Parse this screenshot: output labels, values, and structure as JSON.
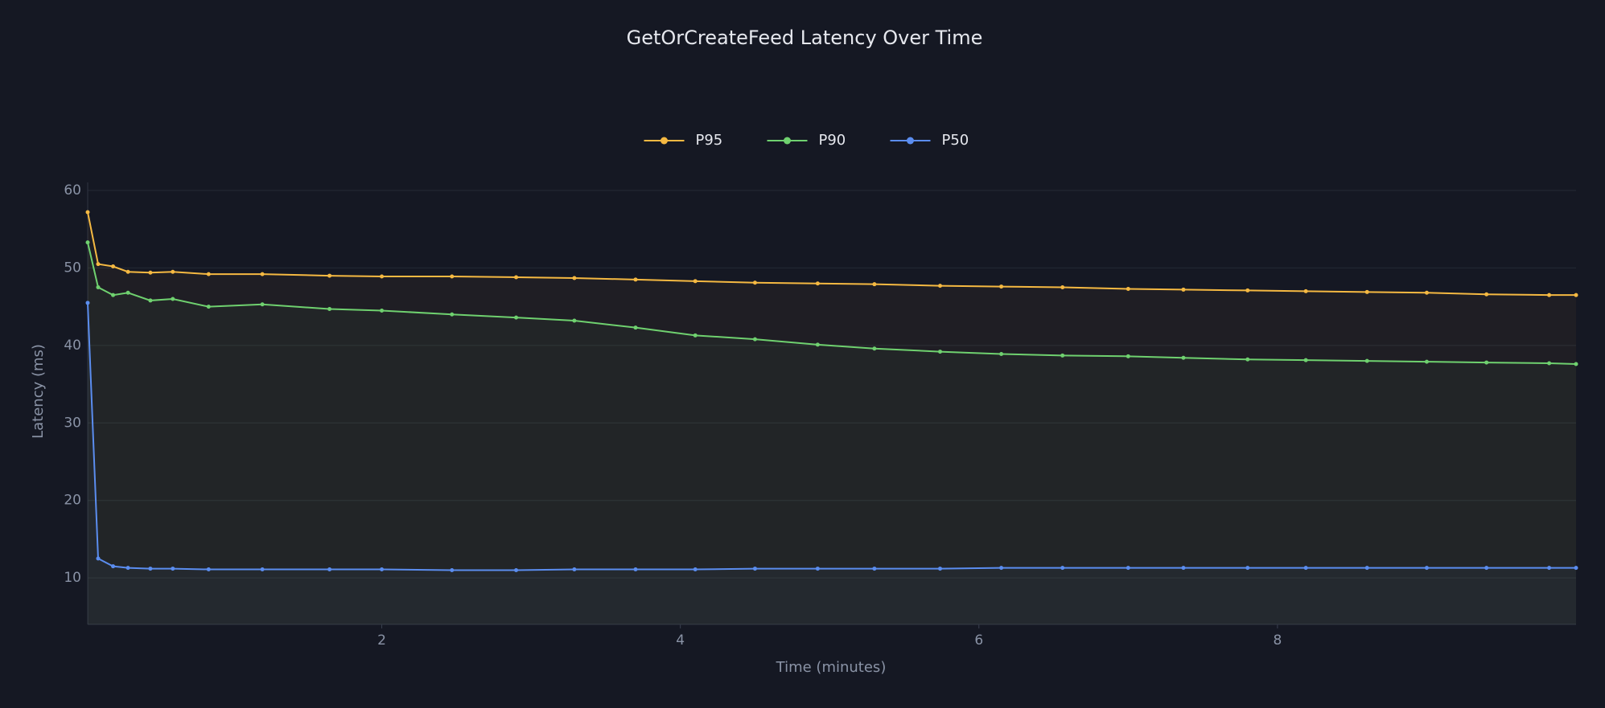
{
  "chart_data": {
    "type": "line",
    "title": "GetOrCreateFeed Latency Over Time",
    "x_label": "Time (minutes)",
    "y_label": "Latency (ms)",
    "x": [
      0.03,
      0.1,
      0.2,
      0.3,
      0.45,
      0.6,
      0.84,
      1.2,
      1.65,
      2.0,
      2.47,
      2.9,
      3.29,
      3.7,
      4.1,
      4.5,
      4.92,
      5.3,
      5.74,
      6.15,
      6.56,
      7.0,
      7.37,
      7.8,
      8.19,
      8.6,
      9.0,
      9.4,
      9.82,
      10.0
    ],
    "series": [
      {
        "name": "P95",
        "color": "#f5b942",
        "values": [
          57.2,
          50.5,
          50.2,
          49.5,
          49.4,
          49.5,
          49.2,
          49.2,
          49.0,
          48.9,
          48.9,
          48.8,
          48.7,
          48.5,
          48.3,
          48.1,
          48.0,
          47.9,
          47.7,
          47.6,
          47.5,
          47.3,
          47.2,
          47.1,
          47.0,
          46.9,
          46.8,
          46.6,
          46.5,
          46.5
        ]
      },
      {
        "name": "P90",
        "color": "#6fd16f",
        "values": [
          53.3,
          47.5,
          46.5,
          46.8,
          45.8,
          46.0,
          45.0,
          45.3,
          44.7,
          44.5,
          44.0,
          43.6,
          43.2,
          42.3,
          41.3,
          40.8,
          40.1,
          39.6,
          39.2,
          38.9,
          38.7,
          38.6,
          38.4,
          38.2,
          38.1,
          38.0,
          37.9,
          37.8,
          37.7,
          37.6
        ]
      },
      {
        "name": "P50",
        "color": "#5b8def",
        "values": [
          45.5,
          12.5,
          11.5,
          11.3,
          11.2,
          11.2,
          11.1,
          11.1,
          11.1,
          11.1,
          11.0,
          11.0,
          11.1,
          11.1,
          11.1,
          11.2,
          11.2,
          11.2,
          11.2,
          11.3,
          11.3,
          11.3,
          11.3,
          11.3,
          11.3,
          11.3,
          11.3,
          11.3,
          11.3,
          11.3
        ]
      }
    ],
    "xlim": [
      0.03,
      10.0
    ],
    "xticks": [
      2,
      4,
      6,
      8
    ],
    "ylim": [
      4,
      60
    ],
    "yticks": [
      10,
      20,
      30,
      40,
      50,
      60
    ],
    "grid": true,
    "legend": "top"
  }
}
